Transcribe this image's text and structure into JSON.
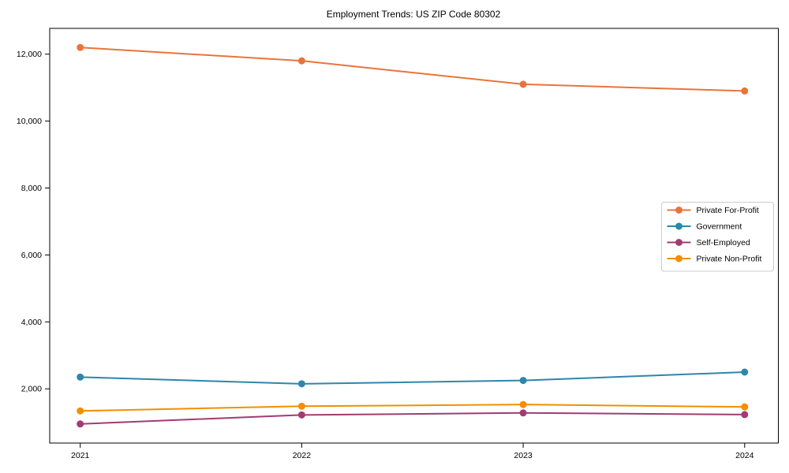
{
  "title": "Employment Trends: US ZIP Code 80302",
  "chart_data": {
    "type": "line",
    "title": "Employment Trends: US ZIP Code 80302",
    "x": [
      2021,
      2022,
      2023,
      2024
    ],
    "xtick_labels": [
      "2021",
      "2022",
      "2023",
      "2024"
    ],
    "yticks": [
      2000,
      4000,
      6000,
      8000,
      10000,
      12000
    ],
    "ytick_labels": [
      "2,000",
      "4,000",
      "6,000",
      "8,000",
      "10,000",
      "12,000"
    ],
    "ylim": [
      380,
      12770
    ],
    "grid": false,
    "legend_position": "center right",
    "series": [
      {
        "name": "Private For-Profit",
        "color": "#E8743B",
        "values": [
          12200,
          11800,
          11100,
          10900
        ]
      },
      {
        "name": "Government",
        "color": "#2E86AB",
        "values": [
          2350,
          2150,
          2250,
          2500
        ]
      },
      {
        "name": "Self-Employed",
        "color": "#A23B72",
        "values": [
          950,
          1220,
          1280,
          1230
        ]
      },
      {
        "name": "Private Non-Profit",
        "color": "#F18F01",
        "values": [
          1340,
          1480,
          1530,
          1460
        ]
      }
    ]
  }
}
